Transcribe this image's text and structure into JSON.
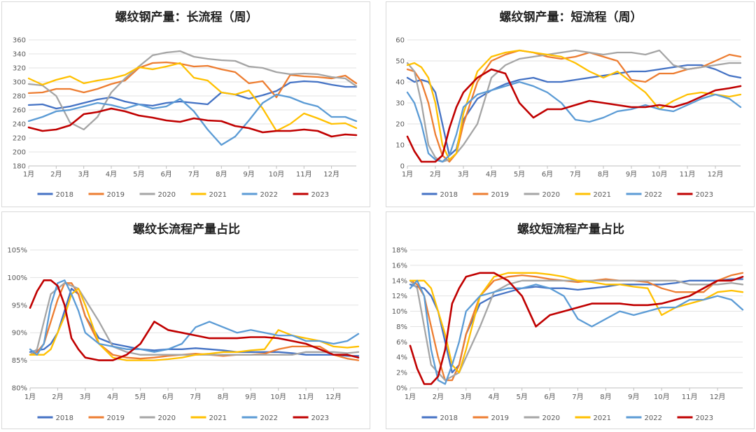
{
  "colors": {
    "2018": "#4472C4",
    "2019": "#ED7D31",
    "2020": "#A5A5A5",
    "2021": "#FFC000",
    "2022": "#5B9BD5",
    "2023": "#C00000"
  },
  "chart_data": [
    {
      "type": "line",
      "title": "螺纹钢产量：长流程（周）",
      "categories": [
        "1月",
        "2月",
        "3月",
        "4月",
        "5月",
        "6月",
        "7月",
        "8月",
        "9月",
        "10月",
        "11月",
        "12月"
      ],
      "yticks": [
        "180",
        "200",
        "220",
        "240",
        "260",
        "280",
        "300",
        "320",
        "340",
        "360"
      ],
      "ylim": [
        180,
        360
      ],
      "x": [
        1,
        1.5,
        2,
        2.5,
        3,
        3.5,
        4,
        4.5,
        5,
        5.5,
        6,
        6.5,
        7,
        7.5,
        8,
        8.5,
        9,
        9.5,
        10,
        10.5,
        11,
        11.5,
        12,
        12.5,
        12.9
      ],
      "series": [
        {
          "name": "2018",
          "values": [
            267,
            268,
            262,
            265,
            270,
            275,
            278,
            272,
            268,
            266,
            270,
            272,
            270,
            268,
            285,
            282,
            276,
            281,
            287,
            299,
            301,
            300,
            296,
            293,
            293
          ]
        },
        {
          "name": "2019",
          "values": [
            284,
            285,
            290,
            290,
            285,
            290,
            297,
            302,
            320,
            327,
            328,
            326,
            322,
            323,
            318,
            314,
            298,
            301,
            278,
            310,
            308,
            307,
            305,
            309,
            298
          ]
        },
        {
          "name": "2020",
          "values": [
            297,
            295,
            280,
            242,
            232,
            250,
            285,
            305,
            322,
            338,
            342,
            344,
            336,
            333,
            331,
            330,
            322,
            320,
            314,
            311,
            312,
            311,
            307,
            305,
            294
          ]
        },
        {
          "name": "2021",
          "values": [
            305,
            296,
            303,
            308,
            298,
            302,
            305,
            310,
            321,
            318,
            322,
            327,
            306,
            302,
            285,
            282,
            288,
            262,
            230,
            240,
            255,
            248,
            240,
            241,
            234
          ]
        },
        {
          "name": "2022",
          "values": [
            244,
            250,
            258,
            260,
            265,
            270,
            267,
            262,
            268,
            262,
            265,
            276,
            258,
            232,
            210,
            222,
            245,
            270,
            282,
            278,
            270,
            265,
            250,
            250,
            244
          ]
        },
        {
          "name": "2023",
          "values": [
            235,
            230,
            232,
            238,
            254,
            257,
            262,
            258,
            252,
            249,
            245,
            243,
            248,
            245,
            244,
            237,
            234,
            228,
            230,
            230,
            232,
            230,
            222,
            225,
            224
          ]
        }
      ],
      "legend": [
        "2018",
        "2019",
        "2020",
        "2021",
        "2022",
        "2023"
      ]
    },
    {
      "type": "line",
      "title": "螺纹钢产量：短流程（周）",
      "categories": [
        "1月",
        "2月",
        "3月",
        "4月",
        "5月",
        "6月",
        "7月",
        "8月",
        "9月",
        "10月",
        "11月",
        "12月"
      ],
      "yticks": [
        "0",
        "10",
        "20",
        "30",
        "40",
        "50",
        "60"
      ],
      "ylim": [
        0,
        60
      ],
      "x": [
        1,
        1.25,
        1.5,
        1.75,
        2,
        2.25,
        2.5,
        2.75,
        3,
        3.5,
        4,
        4.5,
        5,
        5.5,
        6,
        6.5,
        7,
        7.5,
        8,
        8.5,
        9,
        9.5,
        10,
        10.5,
        11,
        11.5,
        12,
        12.5,
        12.9
      ],
      "series": [
        {
          "name": "2018",
          "values": [
            42,
            40,
            41,
            40,
            35,
            20,
            5,
            8,
            22,
            32,
            36,
            39,
            41,
            42,
            40,
            40,
            41,
            42,
            43,
            44,
            45,
            45,
            46,
            47,
            48,
            48,
            46,
            43,
            42
          ]
        },
        {
          "name": "2019",
          "values": [
            46,
            45,
            40,
            30,
            15,
            5,
            2,
            6,
            20,
            40,
            50,
            53,
            55,
            54,
            52,
            51,
            52,
            54,
            52,
            50,
            41,
            40,
            44,
            44,
            46,
            47,
            50,
            53,
            52
          ]
        },
        {
          "name": "2020",
          "values": [
            49,
            45,
            30,
            10,
            4,
            2,
            3,
            6,
            10,
            20,
            42,
            48,
            51,
            52,
            53,
            54,
            55,
            54,
            53,
            54,
            54,
            53,
            55,
            48,
            46,
            47,
            48,
            49,
            49
          ]
        },
        {
          "name": "2021",
          "values": [
            48,
            49,
            47,
            42,
            30,
            10,
            3,
            6,
            25,
            45,
            52,
            54,
            55,
            54,
            53,
            52,
            49,
            45,
            42,
            45,
            40,
            35,
            27,
            31,
            34,
            35,
            34,
            33,
            34
          ]
        },
        {
          "name": "2022",
          "values": [
            35,
            30,
            20,
            6,
            3,
            2,
            5,
            15,
            28,
            34,
            36,
            38,
            40,
            38,
            35,
            30,
            22,
            21,
            23,
            26,
            27,
            29,
            27,
            26,
            29,
            32,
            34,
            32,
            28
          ]
        },
        {
          "name": "2023",
          "values": [
            14,
            7,
            2,
            2,
            2,
            5,
            18,
            28,
            35,
            42,
            46,
            44,
            30,
            23,
            27,
            27,
            29,
            31,
            30,
            29,
            28,
            28,
            29,
            28,
            30,
            33,
            36,
            37,
            38
          ]
        }
      ],
      "legend": [
        "2018",
        "2019",
        "2020",
        "2021",
        "2022",
        "2023"
      ]
    },
    {
      "type": "line",
      "title": "螺纹长流程产量占比",
      "categories": [
        "1月",
        "2月",
        "3月",
        "4月",
        "5月",
        "6月",
        "7月",
        "8月",
        "9月",
        "10月",
        "11月",
        "12月"
      ],
      "yticks": [
        "80%",
        "85%",
        "90%",
        "95%",
        "100%",
        "105%"
      ],
      "ylim": [
        80,
        105
      ],
      "x": [
        1,
        1.25,
        1.5,
        1.75,
        2,
        2.25,
        2.5,
        2.75,
        3,
        3.5,
        4,
        4.5,
        5,
        5.5,
        6,
        6.5,
        7,
        7.5,
        8,
        8.5,
        9,
        9.5,
        10,
        10.5,
        11,
        11.5,
        12,
        12.5,
        12.9
      ],
      "series": [
        {
          "name": "2018",
          "values": [
            86.5,
            86.8,
            87,
            88,
            90,
            94,
            98,
            97,
            93,
            89,
            88,
            87.5,
            87,
            86.8,
            87,
            87,
            87.2,
            87,
            86.8,
            86.5,
            86.5,
            86.5,
            86.5,
            86.3,
            86,
            86,
            86,
            85.8,
            85.8
          ]
        },
        {
          "name": "2019",
          "values": [
            86,
            86.5,
            88,
            92,
            96,
            99,
            99,
            97,
            93,
            88,
            86,
            85.5,
            85.3,
            85.5,
            85.8,
            86,
            86.2,
            86,
            85.8,
            86,
            86,
            86.2,
            87,
            87.5,
            87.5,
            87.5,
            86,
            85.3,
            85
          ]
        },
        {
          "name": "2020",
          "values": [
            86,
            87,
            92,
            97,
            98,
            99,
            98.5,
            98,
            96,
            92,
            87.5,
            86.5,
            86,
            86,
            86,
            86,
            86,
            86,
            86,
            86,
            86,
            86,
            86,
            86,
            86.5,
            86.5,
            86.5,
            86.3,
            86.5
          ]
        },
        {
          "name": "2021",
          "values": [
            86,
            86,
            86,
            87,
            90,
            93,
            97,
            98,
            95,
            88,
            85.5,
            85,
            85,
            85,
            85.2,
            85.5,
            86,
            86.2,
            86.5,
            86.5,
            86.8,
            87,
            90.5,
            89.5,
            89,
            88.5,
            87.5,
            87.3,
            87.5
          ]
        },
        {
          "name": "2022",
          "values": [
            87,
            86,
            88,
            95,
            99,
            99.5,
            97,
            94,
            90,
            88,
            87.5,
            87,
            87,
            86.5,
            87,
            88,
            91,
            92,
            91,
            90,
            90.5,
            90,
            89.5,
            89.5,
            88.5,
            88.5,
            88,
            88.5,
            89.8
          ]
        },
        {
          "name": "2023",
          "values": [
            94.5,
            97.5,
            99.5,
            99.5,
            98.5,
            95,
            89,
            87,
            85.5,
            85,
            85,
            86,
            88,
            92,
            90.5,
            90,
            89.5,
            89,
            89,
            89,
            89.2,
            89.2,
            89,
            88.5,
            88,
            87,
            86,
            86,
            85.5
          ]
        }
      ],
      "legend": [
        "2018",
        "2019",
        "2020",
        "2021",
        "2022",
        "2023"
      ]
    },
    {
      "type": "line",
      "title": "螺纹短流程产量占比",
      "categories": [
        "1月",
        "2月",
        "3月",
        "4月",
        "5月",
        "6月",
        "7月",
        "8月",
        "9月",
        "10月",
        "11月",
        "12月"
      ],
      "yticks": [
        "0%",
        "2%",
        "4%",
        "6%",
        "8%",
        "10%",
        "12%",
        "14%",
        "16%",
        "18%"
      ],
      "ylim": [
        0,
        18
      ],
      "x": [
        1,
        1.25,
        1.5,
        1.75,
        2,
        2.25,
        2.5,
        2.75,
        3,
        3.5,
        4,
        4.5,
        5,
        5.5,
        6,
        6.5,
        7,
        7.5,
        8,
        8.5,
        9,
        9.5,
        10,
        10.5,
        11,
        11.5,
        12,
        12.5,
        12.9
      ],
      "series": [
        {
          "name": "2018",
          "values": [
            13.5,
            13.2,
            13,
            12,
            10,
            6,
            2,
            3,
            7,
            11,
            12,
            12.5,
            13,
            13.2,
            13,
            13,
            12.8,
            13,
            13.2,
            13.5,
            13.5,
            13.5,
            13.5,
            13.7,
            14,
            14,
            14,
            14.2,
            14.2
          ]
        },
        {
          "name": "2019",
          "values": [
            14,
            13.5,
            12,
            8,
            4,
            1,
            1,
            3,
            7,
            12,
            14,
            14.5,
            14.7,
            14.5,
            14.2,
            14,
            13.8,
            14,
            14.2,
            14,
            14,
            13.8,
            13,
            12.5,
            12.5,
            12.5,
            14,
            14.7,
            15
          ]
        },
        {
          "name": "2020",
          "values": [
            14,
            13,
            8,
            3,
            2,
            1,
            1.5,
            2,
            4,
            8,
            12.5,
            13.5,
            14,
            14,
            14,
            14,
            14,
            14,
            14,
            14,
            14,
            14,
            14,
            14,
            13.5,
            13.5,
            13.5,
            13.7,
            13.5
          ]
        },
        {
          "name": "2021",
          "values": [
            14,
            14,
            14,
            13,
            10,
            7,
            3,
            2,
            5,
            12,
            14.5,
            15,
            15,
            15,
            14.8,
            14.5,
            14,
            13.8,
            13.5,
            13.5,
            13.2,
            13,
            9.5,
            10.5,
            11,
            11.5,
            12.5,
            12.7,
            12.5
          ]
        },
        {
          "name": "2022",
          "values": [
            13,
            14,
            12,
            5,
            1,
            0.5,
            3,
            6,
            10,
            12,
            12.5,
            13,
            13,
            13.5,
            13,
            12,
            9,
            8,
            9,
            10,
            9.5,
            10,
            10.5,
            10.5,
            11.5,
            11.5,
            12,
            11.5,
            10.2
          ]
        },
        {
          "name": "2023",
          "values": [
            5.5,
            2.5,
            0.5,
            0.5,
            1.5,
            5,
            11,
            13,
            14.5,
            15,
            15,
            14,
            12,
            8,
            9.5,
            10,
            10.5,
            11,
            11,
            11,
            10.8,
            10.8,
            11,
            11.5,
            12,
            13,
            14,
            14,
            14.5
          ]
        }
      ],
      "legend": [
        "2018",
        "2019",
        "2020",
        "2021",
        "2022",
        "2023"
      ]
    }
  ]
}
